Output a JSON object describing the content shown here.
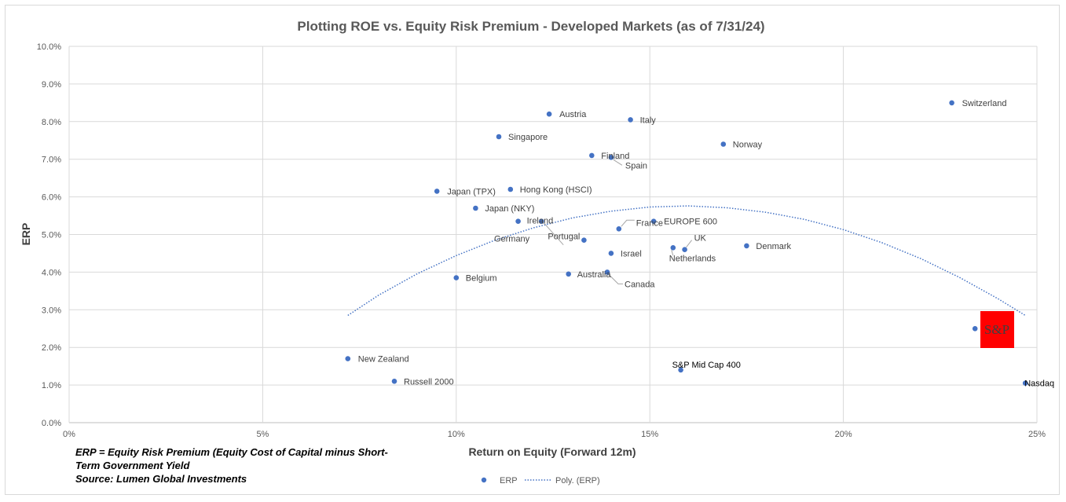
{
  "chart_data": {
    "type": "scatter",
    "title": "Plotting ROE vs. Equity Risk Premium - Developed Markets (as of 7/31/24)",
    "xlabel": "Return on Equity (Forward 12m)",
    "ylabel": "ERP",
    "xlim": [
      0,
      25
    ],
    "ylim": [
      0,
      10
    ],
    "x_ticks": [
      "0%",
      "5%",
      "10%",
      "15%",
      "20%",
      "25%"
    ],
    "y_ticks": [
      "0.0%",
      "1.0%",
      "2.0%",
      "3.0%",
      "4.0%",
      "5.0%",
      "6.0%",
      "7.0%",
      "8.0%",
      "9.0%",
      "10.0%"
    ],
    "grid": true,
    "legend_position": "bottom",
    "series": [
      {
        "name": "ERP",
        "color": "#4472c4",
        "points": [
          {
            "label": "Switzerland",
            "x": 22.8,
            "y": 8.5
          },
          {
            "label": "Austria",
            "x": 12.4,
            "y": 8.2
          },
          {
            "label": "Italy",
            "x": 14.5,
            "y": 8.05
          },
          {
            "label": "Singapore",
            "x": 11.1,
            "y": 7.6
          },
          {
            "label": "Norway",
            "x": 16.9,
            "y": 7.4
          },
          {
            "label": "Finland",
            "x": 13.5,
            "y": 7.1
          },
          {
            "label": "Spain",
            "x": 14.0,
            "y": 7.05
          },
          {
            "label": "Japan (TPX)",
            "x": 9.5,
            "y": 6.15
          },
          {
            "label": "Hong Kong (HSCI)",
            "x": 11.4,
            "y": 6.2
          },
          {
            "label": "Japan (NKY)",
            "x": 10.5,
            "y": 5.7
          },
          {
            "label": "Ireland",
            "x": 11.6,
            "y": 5.35
          },
          {
            "label": "France",
            "x": 14.2,
            "y": 5.15
          },
          {
            "label": "EUROPE 600",
            "x": 15.1,
            "y": 5.35
          },
          {
            "label": "Portugal",
            "x": 13.3,
            "y": 4.85
          },
          {
            "label": "UK",
            "x": 15.9,
            "y": 4.6
          },
          {
            "label": "Netherlands",
            "x": 15.6,
            "y": 4.65
          },
          {
            "label": "Denmark",
            "x": 17.5,
            "y": 4.7
          },
          {
            "label": "Israel",
            "x": 14.0,
            "y": 4.5
          },
          {
            "label": "Germany",
            "x": 12.2,
            "y": 5.35
          },
          {
            "label": "Belgium",
            "x": 10.0,
            "y": 3.85
          },
          {
            "label": "Australia",
            "x": 12.9,
            "y": 3.95
          },
          {
            "label": "Canada",
            "x": 13.9,
            "y": 4.0
          },
          {
            "label": "New Zealand",
            "x": 7.2,
            "y": 1.7
          },
          {
            "label": "Russell 2000",
            "x": 8.4,
            "y": 1.1
          },
          {
            "label": "S&P Mid Cap 400",
            "x": 15.8,
            "y": 1.4
          },
          {
            "label": "S&P",
            "x": 23.4,
            "y": 2.5
          },
          {
            "label": "Nasdaq",
            "x": 24.7,
            "y": 1.05
          }
        ]
      },
      {
        "name": "Poly. (ERP)",
        "type": "line",
        "style": "dotted",
        "color": "#4472c4",
        "x": [
          7.2,
          8.0,
          9.0,
          10.0,
          11.0,
          12.0,
          13.0,
          14.0,
          15.0,
          16.0,
          17.0,
          18.0,
          19.0,
          20.0,
          21.0,
          22.0,
          23.0,
          24.0,
          24.7
        ],
        "y": [
          2.85,
          3.39,
          3.96,
          4.44,
          4.85,
          5.18,
          5.44,
          5.62,
          5.73,
          5.76,
          5.71,
          5.59,
          5.4,
          5.13,
          4.78,
          4.36,
          3.86,
          3.29,
          2.85
        ]
      }
    ],
    "annotation_box": {
      "text": "S&P",
      "color": "#ff0000"
    }
  },
  "legend": {
    "items": [
      {
        "name": "ERP",
        "color": "#4472c4"
      },
      {
        "name": "Poly. (ERP)",
        "color": "#4472c4"
      }
    ]
  },
  "note": {
    "line1": "ERP = Equity Risk Premium (Equity Cost of Capital minus Short-",
    "line2": "Term Government Yield",
    "line3": "Source: Lumen Global Investments"
  }
}
